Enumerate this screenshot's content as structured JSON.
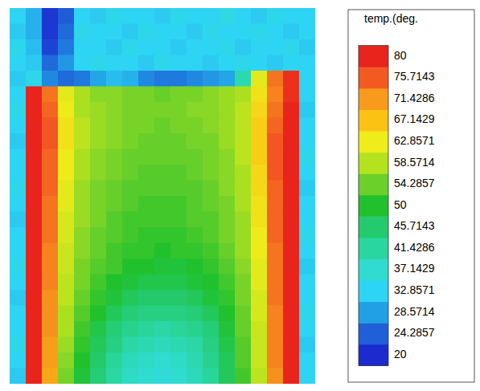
{
  "chart_data": {
    "type": "heatmap",
    "title": "temp.(deg.",
    "tick_labels": false,
    "colorbar": {
      "range": [
        20,
        80
      ],
      "ticks": [
        20,
        24.2857,
        28.5714,
        32.8571,
        37.1429,
        41.4286,
        45.7143,
        50,
        54.2857,
        58.5714,
        62.8571,
        67.1429,
        71.4286,
        75.7143,
        80
      ]
    },
    "colors": [
      "#1b2bd0",
      "#1f5fd8",
      "#22a0e6",
      "#2ed4f4",
      "#2fdccf",
      "#2ad6a0",
      "#24cb6e",
      "#20c12c",
      "#6cd02a",
      "#b5e21f",
      "#eeec1a",
      "#fbc214",
      "#f89a1c",
      "#f35a22",
      "#e8241c"
    ],
    "cells": [
      [
        33,
        30,
        21,
        24,
        33,
        32,
        34,
        33,
        33,
        32,
        34,
        33,
        33,
        35,
        33,
        32,
        34,
        33,
        33
      ],
      [
        32,
        30,
        21,
        25,
        34,
        33,
        33,
        32,
        34,
        33,
        33,
        32,
        34,
        33,
        33,
        34,
        33,
        32,
        33
      ],
      [
        34,
        31,
        22,
        26,
        33,
        33,
        32,
        34,
        33,
        33,
        32,
        33,
        33,
        34,
        32,
        33,
        33,
        34,
        32
      ],
      [
        33,
        32,
        25,
        28,
        33,
        34,
        33,
        33,
        32,
        34,
        33,
        33,
        32,
        33,
        34,
        33,
        32,
        33,
        33
      ],
      [
        32,
        34,
        27,
        25,
        26,
        29,
        31,
        30,
        27,
        26,
        26,
        27,
        28,
        29,
        40,
        62,
        74,
        79,
        33
      ],
      [
        33,
        80,
        74,
        62,
        58,
        56,
        56,
        55,
        55,
        54,
        55,
        55,
        56,
        57,
        58,
        64,
        73,
        79,
        33
      ],
      [
        34,
        80,
        75,
        63,
        58,
        57,
        56,
        55,
        55,
        55,
        55,
        56,
        56,
        57,
        59,
        65,
        74,
        80,
        32
      ],
      [
        33,
        80,
        76,
        64,
        59,
        57,
        56,
        55,
        55,
        54,
        55,
        55,
        56,
        57,
        59,
        66,
        75,
        80,
        33
      ],
      [
        32,
        80,
        76,
        64,
        59,
        57,
        56,
        55,
        54,
        54,
        54,
        55,
        55,
        57,
        59,
        66,
        76,
        80,
        33
      ],
      [
        33,
        80,
        75,
        63,
        58,
        56,
        55,
        54,
        54,
        54,
        54,
        54,
        55,
        56,
        59,
        66,
        76,
        80,
        34
      ],
      [
        33,
        80,
        75,
        63,
        58,
        56,
        55,
        54,
        53,
        53,
        53,
        54,
        55,
        56,
        58,
        65,
        76,
        80,
        33
      ],
      [
        34,
        80,
        75,
        62,
        57,
        55,
        54,
        53,
        53,
        53,
        53,
        53,
        54,
        56,
        58,
        65,
        75,
        80,
        32
      ],
      [
        33,
        80,
        74,
        62,
        57,
        55,
        54,
        53,
        52,
        52,
        52,
        53,
        54,
        55,
        58,
        64,
        75,
        80,
        33
      ],
      [
        32,
        80,
        74,
        61,
        57,
        55,
        53,
        52,
        52,
        52,
        52,
        53,
        53,
        55,
        57,
        64,
        75,
        80,
        33
      ],
      [
        33,
        80,
        74,
        61,
        56,
        54,
        53,
        52,
        51,
        51,
        51,
        52,
        53,
        55,
        57,
        63,
        75,
        80,
        34
      ],
      [
        33,
        80,
        73,
        60,
        56,
        54,
        52,
        51,
        51,
        50,
        51,
        51,
        52,
        54,
        57,
        63,
        74,
        80,
        33
      ],
      [
        34,
        80,
        73,
        60,
        55,
        53,
        52,
        50,
        50,
        49,
        49,
        50,
        51,
        53,
        56,
        62,
        74,
        80,
        32
      ],
      [
        33,
        80,
        73,
        59,
        55,
        52,
        50,
        49,
        48,
        48,
        48,
        49,
        50,
        52,
        55,
        62,
        74,
        80,
        33
      ],
      [
        32,
        80,
        72,
        59,
        54,
        51,
        49,
        47,
        46,
        46,
        46,
        47,
        49,
        51,
        55,
        61,
        74,
        80,
        33
      ],
      [
        33,
        80,
        72,
        58,
        53,
        50,
        47,
        45,
        44,
        44,
        44,
        45,
        47,
        50,
        54,
        61,
        73,
        80,
        34
      ],
      [
        33,
        80,
        72,
        58,
        52,
        48,
        45,
        43,
        42,
        41,
        42,
        43,
        45,
        49,
        54,
        60,
        73,
        80,
        33
      ],
      [
        34,
        80,
        71,
        57,
        51,
        47,
        44,
        41,
        40,
        39,
        40,
        41,
        44,
        48,
        53,
        60,
        73,
        80,
        32
      ],
      [
        33,
        80,
        71,
        56,
        50,
        46,
        42,
        39,
        38,
        37,
        38,
        40,
        43,
        47,
        53,
        60,
        73,
        80,
        33
      ],
      [
        32,
        80,
        70,
        55,
        49,
        45,
        41,
        38,
        37,
        36,
        37,
        39,
        42,
        47,
        52,
        59,
        72,
        80,
        33
      ]
    ]
  }
}
